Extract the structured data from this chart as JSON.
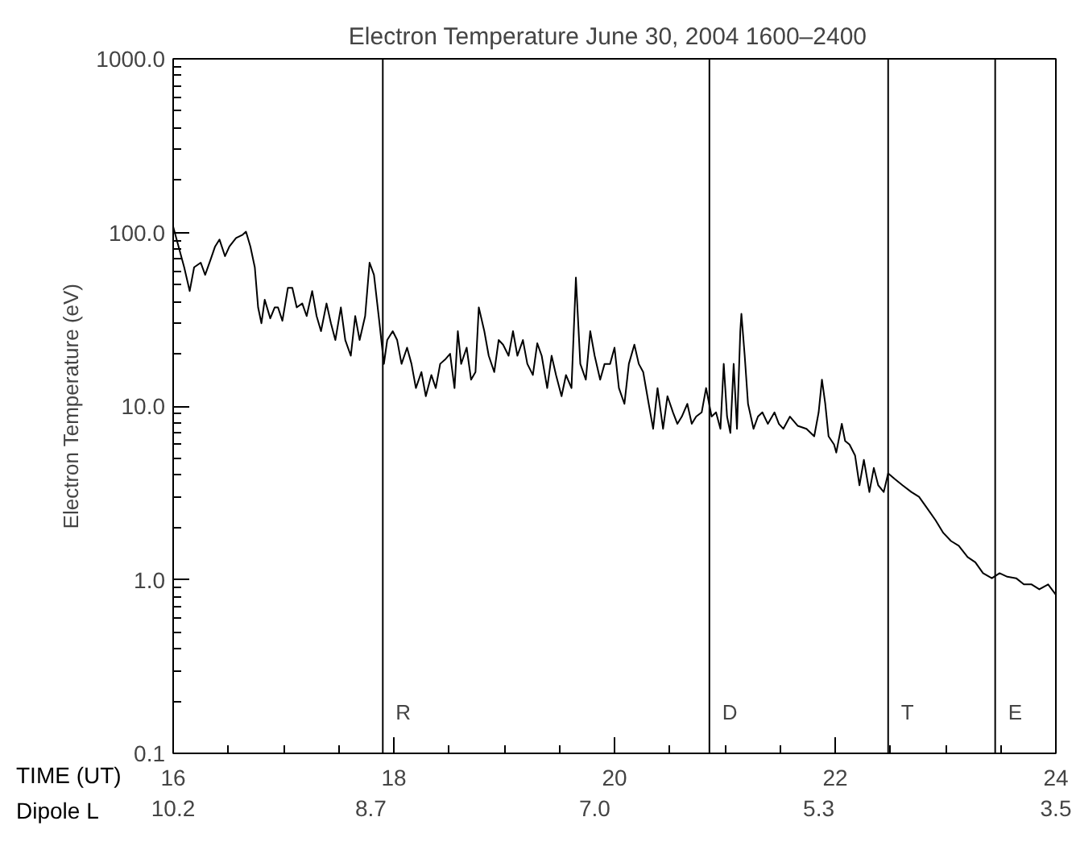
{
  "chart_data": {
    "type": "line",
    "title": "Electron Temperature  June 30, 2004  1600–2400",
    "xlabel": "TIME (UT)",
    "x2label": "Dipole L",
    "ylabel": "Electron Temperature (eV)",
    "log": "y",
    "grid": false,
    "marker": "none",
    "line_style": "solid",
    "xlim": [
      16,
      24
    ],
    "xticks": [
      16,
      18,
      20,
      22,
      24
    ],
    "x2lim": [
      10.2,
      3.5
    ],
    "x2ticks": [
      10.2,
      8.7,
      {
        "value": 7.0,
        "label": "7.0"
      },
      5.3,
      3.5
    ],
    "ylim": [
      0.1,
      1000
    ],
    "yticks": [
      {
        "value": 0.1,
        "label": "0.1"
      },
      {
        "value": 1,
        "label": "1.0"
      },
      {
        "value": 10,
        "label": "10.0"
      },
      {
        "value": 100,
        "label": "100.0"
      },
      {
        "value": 1000,
        "label": "1000.0"
      }
    ],
    "ref_lines": [
      {
        "axis": "x",
        "value": 17.9,
        "label": "R",
        "color": "#000000"
      },
      {
        "axis": "x",
        "value": 20.86,
        "label": "D",
        "color": "#000000"
      },
      {
        "axis": "x",
        "value": 22.48,
        "label": "T",
        "color": "#000000"
      },
      {
        "axis": "x",
        "value": 23.45,
        "label": "E",
        "color": "#000000"
      }
    ],
    "series": [
      {
        "color": "#000000",
        "x": [
          16.0,
          16.04,
          16.1,
          16.15,
          16.19,
          16.25,
          16.29,
          16.34,
          16.38,
          16.42,
          16.47,
          16.51,
          16.57,
          16.63,
          16.66,
          16.7,
          16.74,
          16.77,
          16.8,
          16.83,
          16.88,
          16.92,
          16.95,
          16.99,
          17.04,
          17.08,
          17.12,
          17.17,
          17.21,
          17.26,
          17.3,
          17.34,
          17.39,
          17.43,
          17.47,
          17.52,
          17.56,
          17.61,
          17.65,
          17.69,
          17.74,
          17.78,
          17.82,
          17.87,
          17.91,
          17.94,
          17.99,
          18.03,
          18.07,
          18.12,
          18.16,
          18.2,
          18.25,
          18.29,
          18.34,
          18.38,
          18.42,
          18.47,
          18.51,
          18.55,
          18.58,
          18.61,
          18.66,
          18.7,
          18.74,
          18.77,
          18.82,
          18.86,
          18.91,
          18.95,
          18.99,
          19.04,
          19.08,
          19.12,
          19.17,
          19.21,
          19.26,
          19.3,
          19.34,
          19.39,
          19.43,
          19.47,
          19.52,
          19.56,
          19.61,
          19.65,
          19.69,
          19.74,
          19.78,
          19.82,
          19.87,
          19.91,
          19.96,
          20.0,
          20.04,
          20.09,
          20.13,
          20.18,
          20.22,
          20.26,
          20.31,
          20.35,
          20.39,
          20.44,
          20.48,
          20.53,
          20.57,
          20.61,
          20.66,
          20.7,
          20.74,
          20.79,
          20.83,
          20.88,
          20.92,
          20.96,
          20.99,
          21.02,
          21.05,
          21.08,
          21.11,
          21.14,
          21.15,
          21.18,
          21.21,
          21.26,
          21.3,
          21.34,
          21.39,
          21.45,
          21.49,
          21.53,
          21.59,
          21.66,
          21.74,
          21.81,
          21.85,
          21.88,
          21.91,
          21.94,
          21.99,
          22.01,
          22.06,
          22.09,
          22.13,
          22.18,
          22.22,
          22.26,
          22.31,
          22.35,
          22.39,
          22.44,
          22.48,
          22.54,
          22.61,
          22.69,
          22.76,
          22.83,
          22.91,
          22.98,
          23.05,
          23.12,
          23.2,
          23.27,
          23.34,
          23.42,
          23.49,
          23.56,
          23.64,
          23.71,
          23.78,
          23.85,
          23.93,
          24.0
        ],
        "values": [
          108,
          87,
          63,
          46,
          63,
          67,
          57,
          70,
          83,
          91,
          73,
          83,
          93,
          97,
          101,
          83,
          63,
          37,
          30,
          41,
          32,
          37,
          37,
          31,
          48,
          48,
          37,
          39,
          33,
          46,
          33,
          27,
          39,
          30,
          24,
          37,
          24,
          19.5,
          33,
          24,
          33,
          67,
          57,
          30,
          17.5,
          24,
          27,
          24,
          17.5,
          21.7,
          17.5,
          12.7,
          15.7,
          11.4,
          15.1,
          12.7,
          17.5,
          18.7,
          20,
          12.7,
          27,
          17.5,
          21.7,
          14.2,
          15.7,
          37,
          27,
          19.5,
          15.7,
          24,
          22.6,
          19.5,
          27,
          19.5,
          24,
          17.5,
          15.1,
          23,
          19.5,
          12.7,
          19.5,
          15.1,
          11.4,
          15.1,
          12.7,
          55,
          17.5,
          14.2,
          27,
          19.5,
          14.2,
          17.5,
          17.5,
          21.7,
          12.7,
          10.3,
          17.5,
          22.6,
          17.5,
          15.7,
          10.3,
          7.4,
          12.7,
          7.4,
          11.4,
          9.2,
          7.9,
          8.7,
          10.3,
          7.9,
          8.7,
          9.2,
          12.7,
          8.7,
          9.2,
          7.4,
          17.5,
          8.7,
          7.0,
          17.5,
          7.4,
          27,
          34,
          19.5,
          10.3,
          7.4,
          8.7,
          9.2,
          7.9,
          9.2,
          7.9,
          7.4,
          8.7,
          7.7,
          7.4,
          6.7,
          9.2,
          14.2,
          10.3,
          6.7,
          6.0,
          5.4,
          7.9,
          6.3,
          6.0,
          5.2,
          3.5,
          4.9,
          3.2,
          4.4,
          3.5,
          3.2,
          4.1,
          3.8,
          3.5,
          3.2,
          3.0,
          2.6,
          2.2,
          1.86,
          1.67,
          1.57,
          1.35,
          1.26,
          1.09,
          1.02,
          1.09,
          1.04,
          1.02,
          0.94,
          0.94,
          0.88,
          0.94,
          0.82
        ]
      }
    ]
  }
}
